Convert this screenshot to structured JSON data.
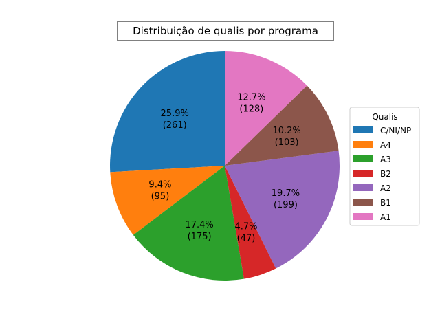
{
  "chart_data": {
    "type": "pie",
    "title": "Distribuição de qualis por programa",
    "legend_title": "Qualis",
    "legend_placement": "right",
    "start_angle_deg": 90,
    "direction": "counterclockwise",
    "slices": [
      {
        "label": "C/NI/NP",
        "value": 261,
        "percent": "25.9%",
        "color": "#1f77b4"
      },
      {
        "label": "A4",
        "value": 95,
        "percent": "9.4%",
        "color": "#ff7f0e"
      },
      {
        "label": "A3",
        "value": 175,
        "percent": "17.4%",
        "color": "#2ca02c"
      },
      {
        "label": "B2",
        "value": 47,
        "percent": "4.7%",
        "color": "#d62728"
      },
      {
        "label": "A2",
        "value": 199,
        "percent": "19.7%",
        "color": "#9467bd"
      },
      {
        "label": "B1",
        "value": 103,
        "percent": "10.2%",
        "color": "#8c564b"
      },
      {
        "label": "A1",
        "value": 128,
        "percent": "12.7%",
        "color": "#e377c2"
      }
    ]
  }
}
